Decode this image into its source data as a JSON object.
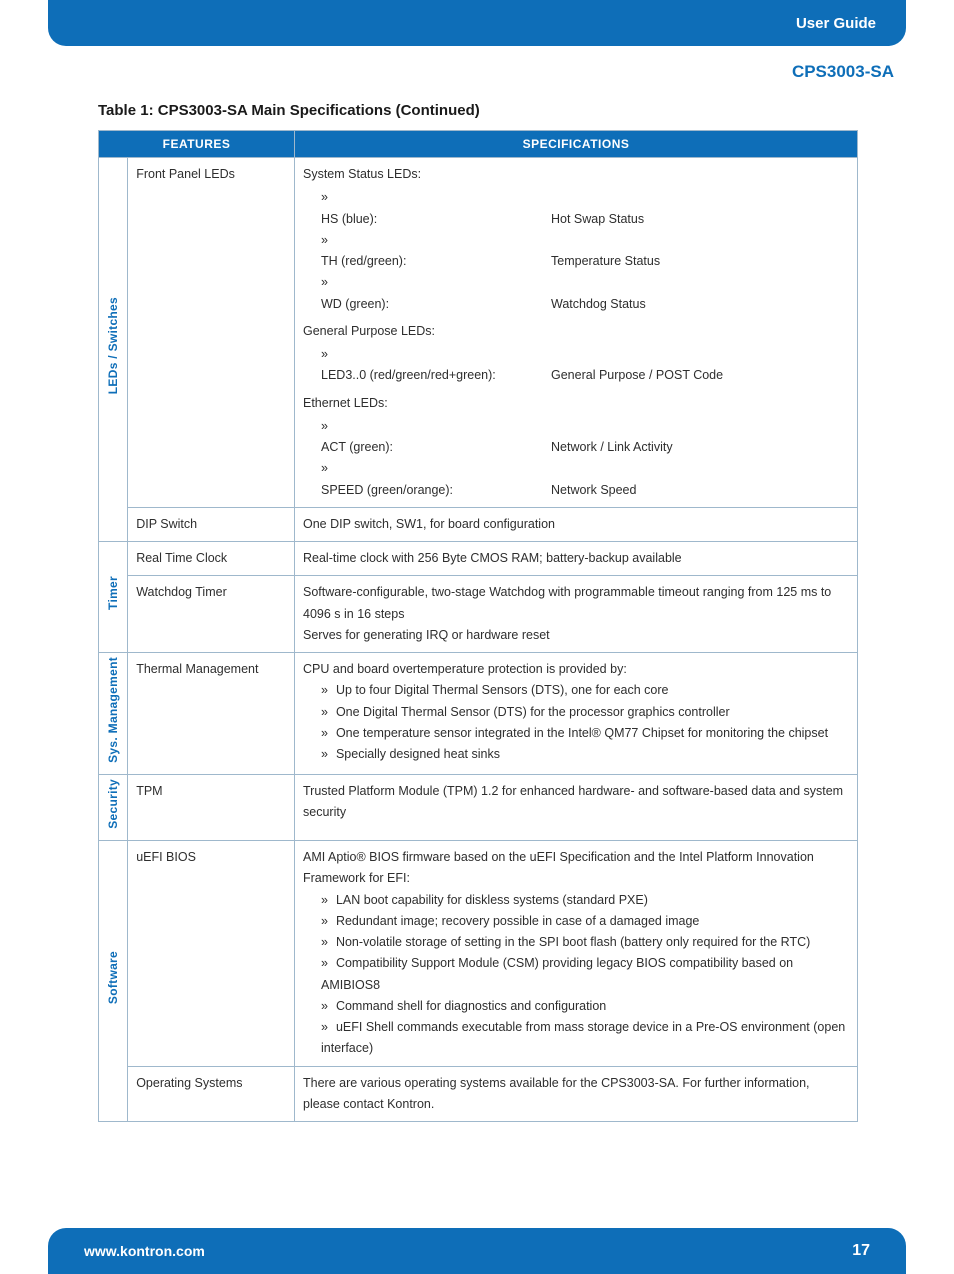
{
  "colors": {
    "brand_blue": "#0e6eb8",
    "border": "#9fb8cc",
    "text": "#2e2e2e",
    "white": "#ffffff"
  },
  "header": {
    "label": "User Guide"
  },
  "doc_title": "CPS3003-SA",
  "table_title": "Table 1: CPS3003-SA Main Specifications  (Continued)",
  "th_features": "FEATURES",
  "th_specs": "SPECIFICATIONS",
  "sections": {
    "leds": {
      "category": "LEDs / Switches",
      "front_panel": {
        "feature": "Front Panel LEDs",
        "group1_title": "System Status LEDs:",
        "group1_items": [
          {
            "lbl": "HS (blue):",
            "desc": "Hot Swap Status"
          },
          {
            "lbl": "TH (red/green):",
            "desc": "Temperature Status"
          },
          {
            "lbl": "WD (green):",
            "desc": "Watchdog Status"
          }
        ],
        "group2_title": "General Purpose LEDs:",
        "group2_items": [
          {
            "lbl": "LED3..0 (red/green/red+green):",
            "desc": "General Purpose / POST Code"
          }
        ],
        "group3_title": "Ethernet LEDs:",
        "group3_items": [
          {
            "lbl": "ACT (green):",
            "desc": "Network / Link Activity"
          },
          {
            "lbl": "SPEED (green/orange):",
            "desc": "Network Speed"
          }
        ]
      },
      "dip": {
        "feature": "DIP Switch",
        "spec": "One DIP switch, SW1, for board configuration"
      }
    },
    "timer": {
      "category": "Timer",
      "rtc": {
        "feature": "Real Time Clock",
        "spec": "Real-time clock with 256 Byte CMOS RAM; battery-backup available"
      },
      "wd": {
        "feature": "Watchdog Timer",
        "spec_l1": "Software-configurable, two-stage Watchdog with programmable timeout ranging from 125 ms to 4096 s in 16 steps",
        "spec_l2": "Serves for generating IRQ or hardware reset"
      }
    },
    "sysmgmt": {
      "category": "Sys. Management",
      "thermal": {
        "feature": "Thermal Management",
        "intro": "CPU and board overtemperature protection is provided by:",
        "items": [
          "Up to four Digital Thermal Sensors (DTS), one for each core",
          "One Digital Thermal Sensor (DTS) for the processor graphics controller",
          "One temperature sensor integrated in the Intel® QM77 Chipset for monitoring the chipset",
          "Specially designed heat sinks"
        ]
      }
    },
    "security": {
      "category": "Security",
      "tpm": {
        "feature": "TPM",
        "spec": "Trusted Platform Module (TPM) 1.2 for enhanced hardware- and software-based data and system security"
      }
    },
    "software": {
      "category": "Software",
      "bios": {
        "feature": "uEFI BIOS",
        "intro": "AMI Aptio® BIOS firmware based on the uEFI Specification and the Intel Platform Innovation Framework for EFI:",
        "items": [
          "LAN boot capability for diskless systems (standard PXE)",
          "Redundant image; recovery possible in case of a damaged image",
          "Non-volatile storage of setting in the SPI boot flash (battery only required for the RTC)",
          "Compatibility Support Module (CSM) providing legacy BIOS compatibility based on AMIBIOS8",
          "Command shell for diagnostics and configuration",
          "uEFI Shell commands executable from mass storage device in a Pre-OS environment (open interface)"
        ]
      },
      "os": {
        "feature": "Operating Systems",
        "spec": "There are various operating systems available for the CPS3003-SA. For further information, please contact Kontron."
      }
    }
  },
  "footer": {
    "url": "www.kontron.com",
    "page": "17"
  }
}
